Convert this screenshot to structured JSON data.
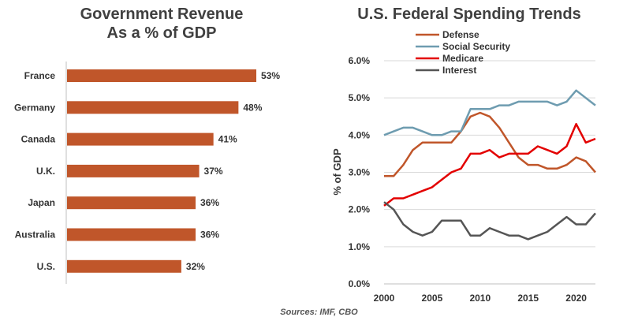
{
  "colors": {
    "bar": "#C0562A",
    "defense": "#C0562A",
    "social_security": "#6E9CB0",
    "medicare": "#E30000",
    "interest": "#555555",
    "grid": "#D9D9D9",
    "axis": "#BFBFBF"
  },
  "chart_data": [
    {
      "type": "bar",
      "orientation": "horizontal",
      "title": "Government Revenue",
      "subtitle": "As a % of GDP",
      "categories": [
        "France",
        "Germany",
        "Canada",
        "U.K.",
        "Japan",
        "Australia",
        "U.S."
      ],
      "values": [
        53,
        48,
        41,
        37,
        36,
        36,
        32
      ],
      "value_labels": [
        "53%",
        "48%",
        "41%",
        "37%",
        "36%",
        "36%",
        "32%"
      ],
      "xlim": [
        0,
        53
      ],
      "grid": false
    },
    {
      "type": "line",
      "title": "U.S. Federal Spending Trends",
      "xlabel": "",
      "ylabel": "% of GDP",
      "ylim": [
        0,
        6
      ],
      "xlim": [
        2000,
        2022
      ],
      "x_ticks": [
        "2000",
        "2005",
        "2010",
        "2015",
        "2020"
      ],
      "y_ticks": [
        "0.0%",
        "1.0%",
        "2.0%",
        "3.0%",
        "4.0%",
        "5.0%",
        "6.0%"
      ],
      "grid": true,
      "legend_position": "top",
      "x": [
        2000,
        2001,
        2002,
        2003,
        2004,
        2005,
        2006,
        2007,
        2008,
        2009,
        2010,
        2011,
        2012,
        2013,
        2014,
        2015,
        2016,
        2017,
        2018,
        2019,
        2020,
        2021,
        2022
      ],
      "series": [
        {
          "name": "Defense",
          "color_key": "defense",
          "values": [
            2.9,
            2.9,
            3.2,
            3.6,
            3.8,
            3.8,
            3.8,
            3.8,
            4.1,
            4.5,
            4.6,
            4.5,
            4.2,
            3.8,
            3.4,
            3.2,
            3.2,
            3.1,
            3.1,
            3.2,
            3.4,
            3.3,
            3.0
          ]
        },
        {
          "name": "Social Security",
          "color_key": "social_security",
          "values": [
            4.0,
            4.1,
            4.2,
            4.2,
            4.1,
            4.0,
            4.0,
            4.1,
            4.1,
            4.7,
            4.7,
            4.7,
            4.8,
            4.8,
            4.9,
            4.9,
            4.9,
            4.9,
            4.8,
            4.9,
            5.2,
            5.0,
            4.8
          ]
        },
        {
          "name": "Medicare",
          "color_key": "medicare",
          "values": [
            2.1,
            2.3,
            2.3,
            2.4,
            2.5,
            2.6,
            2.8,
            3.0,
            3.1,
            3.5,
            3.5,
            3.6,
            3.4,
            3.5,
            3.5,
            3.5,
            3.7,
            3.6,
            3.5,
            3.7,
            4.3,
            3.8,
            3.9
          ]
        },
        {
          "name": "Interest",
          "color_key": "interest",
          "values": [
            2.2,
            2.0,
            1.6,
            1.4,
            1.3,
            1.4,
            1.7,
            1.7,
            1.7,
            1.3,
            1.3,
            1.5,
            1.4,
            1.3,
            1.3,
            1.2,
            1.3,
            1.4,
            1.6,
            1.8,
            1.6,
            1.6,
            1.9
          ]
        }
      ]
    }
  ],
  "source_text": "Sources: IMF, CBO"
}
